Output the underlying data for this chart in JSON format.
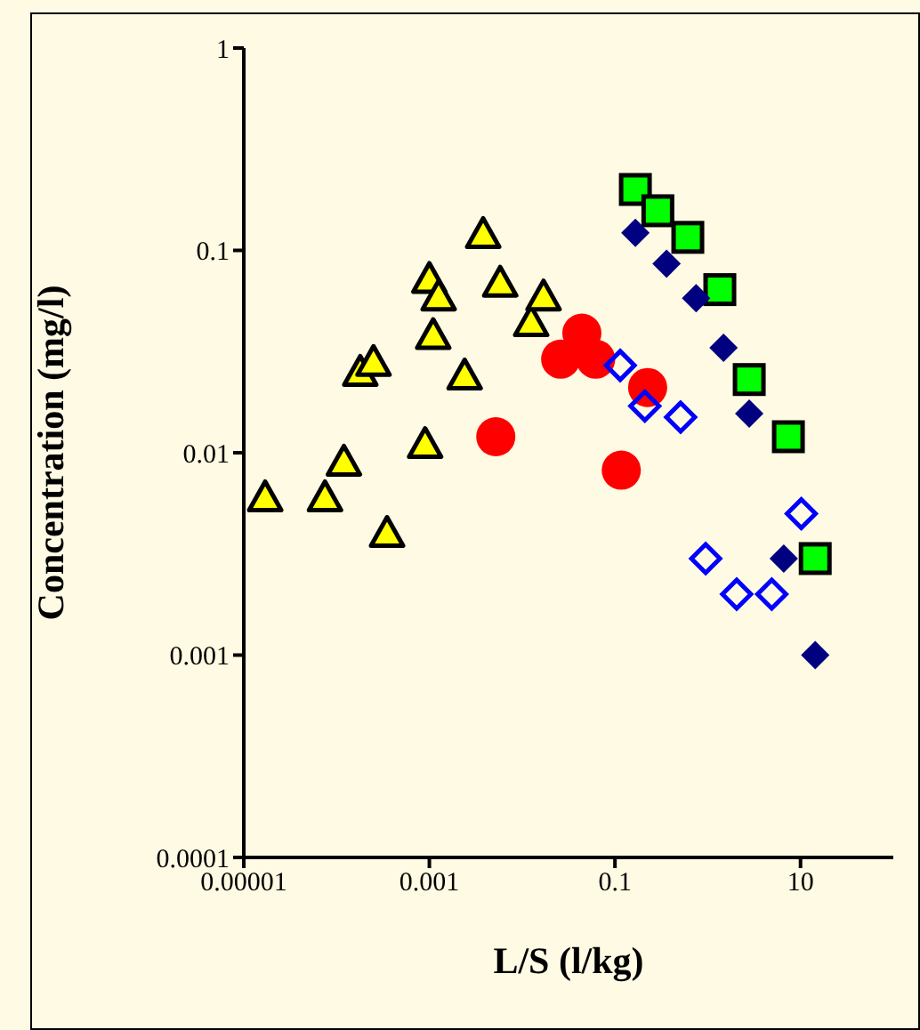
{
  "chart_data": {
    "type": "scatter",
    "xlabel": "L/S  (l/kg)",
    "ylabel": "Concentration (mg/l)",
    "log": "xy",
    "grid": false,
    "legend": false,
    "xlim": [
      1e-05,
      100
    ],
    "xticks": [
      {
        "value": 1e-05,
        "label": "0.00001"
      },
      0.001,
      0.1,
      10
    ],
    "ylim": [
      0.0001,
      1
    ],
    "yticks": [
      0.0001,
      0.001,
      0.01,
      0.1,
      1
    ],
    "series": [
      {
        "marker": "triangle",
        "color": "#ffff00",
        "x": [
          1.7e-05,
          7.5e-05,
          0.00012,
          0.00035,
          0.00018,
          0.00025,
          0.0009,
          0.001,
          0.00126,
          0.0011,
          0.0038,
          0.0058,
          0.0024,
          0.0125,
          0.017
        ],
        "values": [
          0.006,
          0.006,
          0.009,
          0.004,
          0.025,
          0.028,
          0.011,
          0.072,
          0.059,
          0.038,
          0.12,
          0.069,
          0.024,
          0.044,
          0.059
        ]
      },
      {
        "marker": "circle",
        "color": "#ff0000",
        "x": [
          0.0052,
          0.026,
          0.044,
          0.062,
          0.225,
          0.117
        ],
        "values": [
          0.012,
          0.029,
          0.039,
          0.029,
          0.021,
          0.0082
        ]
      },
      {
        "marker": "square",
        "color": "#00ff00",
        "x": [
          0.166,
          0.29,
          0.61,
          1.35,
          2.8,
          7.4,
          14.4
        ],
        "values": [
          0.2,
          0.157,
          0.116,
          0.064,
          0.023,
          0.012,
          0.003
        ]
      },
      {
        "marker": "diamond",
        "color": "#000080",
        "x": [
          0.166,
          0.36,
          0.75,
          1.48,
          2.8,
          6.6,
          14.4
        ],
        "values": [
          0.122,
          0.086,
          0.058,
          0.033,
          0.0156,
          0.003,
          0.001
        ]
      },
      {
        "marker": "diamond",
        "color": "#0000ff",
        "x": [
          0.114,
          0.21,
          0.51,
          0.95,
          2.05,
          4.9,
          10.2
        ],
        "values": [
          0.027,
          0.017,
          0.015,
          0.003,
          0.002,
          0.002,
          0.005
        ]
      }
    ]
  }
}
